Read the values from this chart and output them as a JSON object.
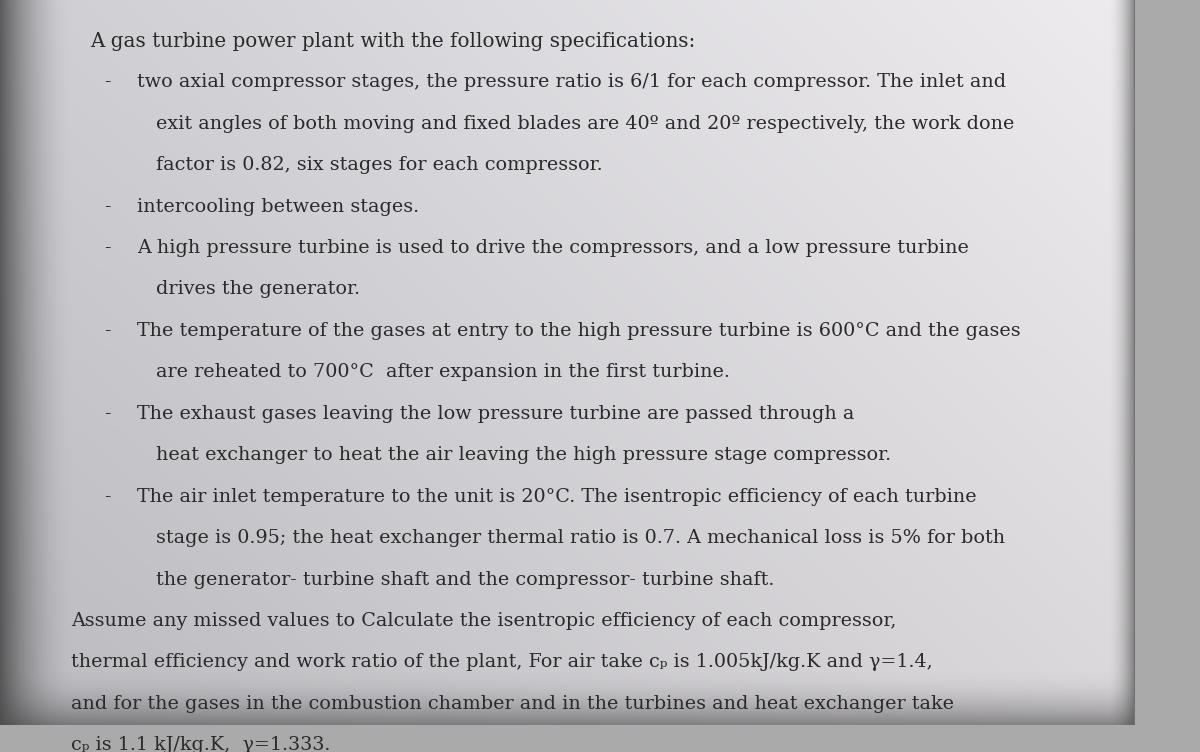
{
  "bg_color_tl": "#b8b8b8",
  "bg_color_tr": "#c8c8c8",
  "bg_color_bl": "#888888",
  "bg_color_br": "#aaaaaa",
  "paper_color_center": "#f2f0ed",
  "paper_color_left": "#d8d6d3",
  "paper_color_right": "#e8e6e3",
  "text_color": "#2a2a2a",
  "title_line": "A gas turbine power plant with the following specifications:",
  "lines": [
    {
      "type": "bullet",
      "text": "two axial compressor stages, the pressure ratio is 6/1 for each compressor. The inlet and"
    },
    {
      "type": "cont",
      "text": "exit angles of both moving and fixed blades are 40º and 20º respectively, the work done"
    },
    {
      "type": "cont",
      "text": "factor is 0.82, six stages for each compressor."
    },
    {
      "type": "bullet",
      "text": "intercooling between stages."
    },
    {
      "type": "bullet",
      "text": "A high pressure turbine is used to drive the compressors, and a low pressure turbine"
    },
    {
      "type": "cont",
      "text": "drives the generator."
    },
    {
      "type": "bullet",
      "text": "The temperature of the gases at entry to the high pressure turbine is 600°C and the gases"
    },
    {
      "type": "cont",
      "text": "are reheated to 700°C  after expansion in the first turbine."
    },
    {
      "type": "bullet",
      "text": "The exhaust gases leaving the low pressure turbine are passed through a"
    },
    {
      "type": "cont",
      "text": "heat exchanger to heat the air leaving the high pressure stage compressor."
    },
    {
      "type": "bullet",
      "text": "The air inlet temperature to the unit is 20°C. The isentropic efficiency of each turbine"
    },
    {
      "type": "cont",
      "text": "stage is 0.95; the heat exchanger thermal ratio is 0.7. A mechanical loss is 5% for both"
    },
    {
      "type": "cont",
      "text": "the generator- turbine shaft and the compressor- turbine shaft."
    },
    {
      "type": "closing",
      "text": "Assume any missed values to Calculate the isentropic efficiency of each compressor,"
    },
    {
      "type": "closing",
      "text": "thermal efficiency and work ratio of the plant, For air take cₚ is 1.005kJ/kg.K and γ=1.4,"
    },
    {
      "type": "closing",
      "text": "and for the gases in the combustion chamber and in the turbines and heat exchanger take"
    },
    {
      "type": "closing",
      "text": "cₚ is 1.1 kJ/kg.K,  γ=1.333."
    }
  ],
  "font_size": 13.8,
  "skew_factor": 0.06
}
